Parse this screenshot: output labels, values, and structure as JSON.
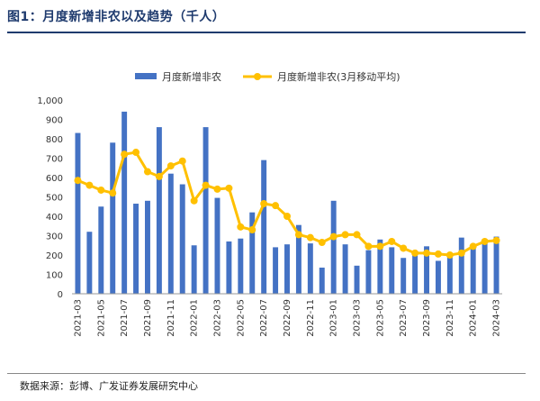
{
  "header": {
    "figure_label": "图1：",
    "title": "月度新增非农以及趋势（千人）"
  },
  "footer": {
    "source": "数据来源：彭博、广发证券发展研究中心"
  },
  "colors": {
    "bar": "#4472C4",
    "line": "#FFC000",
    "accent": "#1f3b6e"
  },
  "chart_data": {
    "type": "bar",
    "x": [
      "2021-03",
      "2021-04",
      "2021-05",
      "2021-06",
      "2021-07",
      "2021-08",
      "2021-09",
      "2021-10",
      "2021-11",
      "2021-12",
      "2022-01",
      "2022-02",
      "2022-03",
      "2022-04",
      "2022-05",
      "2022-06",
      "2022-07",
      "2022-08",
      "2022-09",
      "2022-10",
      "2022-11",
      "2022-12",
      "2023-01",
      "2023-02",
      "2023-03",
      "2023-04",
      "2023-05",
      "2023-06",
      "2023-07",
      "2023-08",
      "2023-09",
      "2023-10",
      "2023-11",
      "2023-12",
      "2024-01",
      "2024-02",
      "2024-03"
    ],
    "x_tick_labels": [
      "2021-03",
      "2021-05",
      "2021-07",
      "2021-09",
      "2021-11",
      "2022-01",
      "2022-03",
      "2022-05",
      "2022-07",
      "2022-09",
      "2022-11",
      "2023-01",
      "2023-03",
      "2023-05",
      "2023-07",
      "2023-09",
      "2023-11",
      "2024-01",
      "2024-03"
    ],
    "series": [
      {
        "name": "月度新增非农",
        "type": "bar",
        "values": [
          830,
          320,
          450,
          780,
          940,
          465,
          480,
          860,
          620,
          565,
          250,
          860,
          495,
          270,
          285,
          420,
          690,
          240,
          255,
          355,
          260,
          135,
          480,
          255,
          145,
          225,
          280,
          240,
          185,
          205,
          245,
          170,
          190,
          290,
          240,
          275,
          295
        ]
      },
      {
        "name": "月度新增非农(3月移动平均)",
        "type": "line",
        "values": [
          585,
          560,
          535,
          520,
          720,
          730,
          630,
          605,
          660,
          685,
          480,
          560,
          540,
          545,
          345,
          330,
          465,
          455,
          400,
          305,
          290,
          265,
          295,
          305,
          305,
          245,
          245,
          270,
          235,
          210,
          210,
          205,
          200,
          210,
          245,
          270,
          275
        ]
      }
    ],
    "y_ticks": [
      "0",
      "100",
      "200",
      "300",
      "400",
      "500",
      "600",
      "700",
      "800",
      "900",
      "1,000"
    ],
    "ylim": [
      0,
      1000
    ],
    "legend": "top-center"
  }
}
